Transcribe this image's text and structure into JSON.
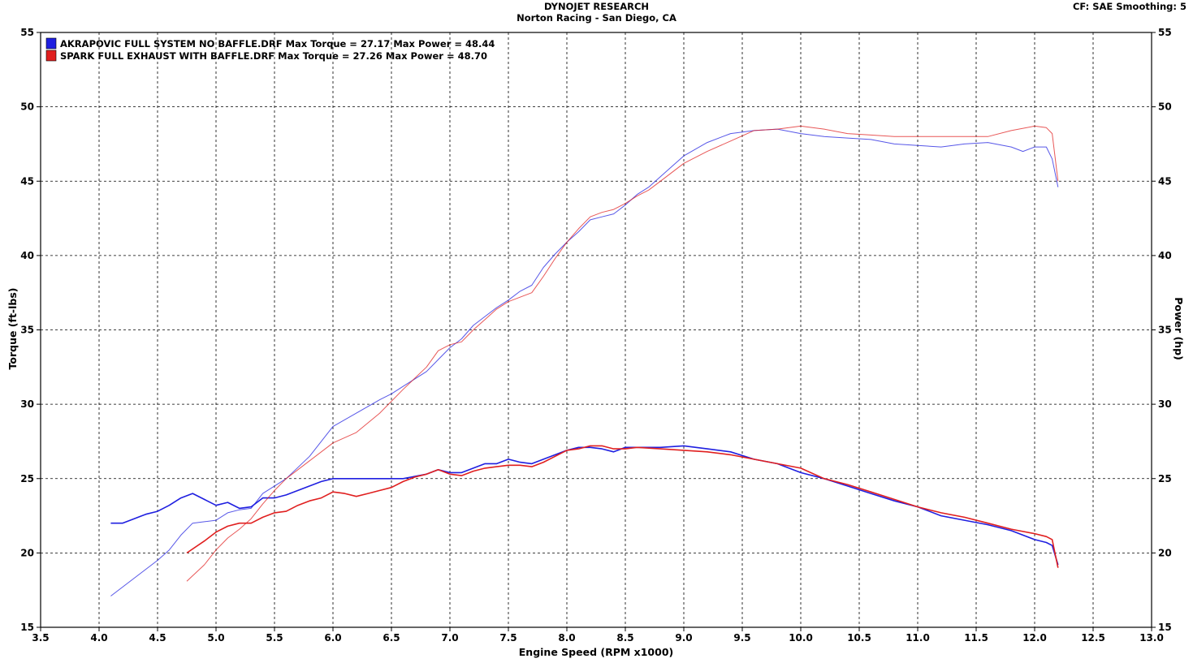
{
  "header": {
    "title": "DYNOJET RESEARCH",
    "subtitle": "Norton Racing - San Diego, CA",
    "settings": "CF: SAE  Smoothing: 5"
  },
  "chart_data": {
    "type": "line",
    "xlabel": "Engine Speed (RPM x1000)",
    "ylabel_left": "Torque (ft-lbs)",
    "ylabel_right": "Power (hp)",
    "xlim": [
      3.5,
      13.0
    ],
    "ylim": [
      15,
      55
    ],
    "x_ticks": [
      "3.5",
      "4.0",
      "4.5",
      "5.0",
      "5.5",
      "6.0",
      "6.5",
      "7.0",
      "7.5",
      "8.0",
      "8.5",
      "9.0",
      "9.5",
      "10.0",
      "10.5",
      "11.0",
      "11.5",
      "12.0",
      "12.5",
      "13.0"
    ],
    "y_ticks": [
      "15",
      "20",
      "25",
      "30",
      "35",
      "40",
      "45",
      "50",
      "55"
    ],
    "grid": true,
    "legend_position": "top-left",
    "legend": [
      {
        "label": "AKRAPOVIC FULL SYSTEM NO BAFFLE.DRF Max Torque = 27.17 Max Power = 48.44",
        "color": "#1f1fe0"
      },
      {
        "label": "SPARK FULL EXHAUST WITH BAFFLE.DRF Max Torque = 27.26 Max Power = 48.70",
        "color": "#e01f1f"
      }
    ],
    "series": [
      {
        "name": "AKRAPOVIC FULL SYSTEM NO BAFFLE.DRF",
        "measure": "Torque",
        "color": "#1f1fe0",
        "x": [
          4.1,
          4.2,
          4.3,
          4.4,
          4.5,
          4.6,
          4.7,
          4.8,
          4.9,
          5.0,
          5.1,
          5.2,
          5.3,
          5.4,
          5.5,
          5.6,
          5.7,
          5.8,
          5.9,
          6.0,
          6.2,
          6.4,
          6.6,
          6.8,
          6.9,
          7.0,
          7.1,
          7.2,
          7.3,
          7.4,
          7.5,
          7.6,
          7.7,
          7.8,
          7.9,
          8.0,
          8.1,
          8.2,
          8.3,
          8.4,
          8.5,
          8.6,
          8.8,
          9.0,
          9.2,
          9.4,
          9.6,
          9.8,
          10.0,
          10.2,
          10.4,
          10.6,
          10.8,
          11.0,
          11.2,
          11.4,
          11.6,
          11.8,
          12.0,
          12.1,
          12.15,
          12.2
        ],
        "values": [
          22.0,
          22.0,
          22.3,
          22.6,
          22.8,
          23.2,
          23.7,
          24.0,
          23.6,
          23.2,
          23.4,
          23.0,
          23.1,
          23.7,
          23.7,
          23.9,
          24.2,
          24.5,
          24.8,
          25.0,
          25.0,
          25.0,
          25.0,
          25.3,
          25.6,
          25.4,
          25.4,
          25.7,
          26.0,
          26.0,
          26.3,
          26.1,
          26.0,
          26.3,
          26.6,
          26.9,
          27.1,
          27.1,
          27.0,
          26.8,
          27.1,
          27.1,
          27.1,
          27.2,
          27.0,
          26.8,
          26.3,
          26.0,
          25.4,
          25.0,
          24.5,
          24.0,
          23.5,
          23.1,
          22.5,
          22.2,
          21.9,
          21.5,
          20.9,
          20.7,
          20.5,
          19.2
        ]
      },
      {
        "name": "SPARK FULL EXHAUST WITH BAFFLE.DRF",
        "measure": "Torque",
        "color": "#e01f1f",
        "x": [
          4.75,
          4.9,
          5.0,
          5.1,
          5.2,
          5.3,
          5.4,
          5.5,
          5.6,
          5.7,
          5.8,
          5.9,
          6.0,
          6.1,
          6.2,
          6.3,
          6.4,
          6.5,
          6.6,
          6.7,
          6.8,
          6.9,
          7.0,
          7.1,
          7.2,
          7.3,
          7.4,
          7.5,
          7.6,
          7.7,
          7.8,
          7.9,
          8.0,
          8.1,
          8.2,
          8.3,
          8.4,
          8.5,
          8.6,
          8.8,
          9.0,
          9.2,
          9.4,
          9.6,
          9.8,
          10.0,
          10.2,
          10.4,
          10.6,
          10.8,
          11.0,
          11.2,
          11.4,
          11.6,
          11.8,
          12.0,
          12.1,
          12.15,
          12.2
        ],
        "values": [
          20.0,
          20.8,
          21.4,
          21.8,
          22.0,
          22.0,
          22.4,
          22.7,
          22.8,
          23.2,
          23.5,
          23.7,
          24.1,
          24.0,
          23.8,
          24.0,
          24.2,
          24.4,
          24.8,
          25.1,
          25.3,
          25.6,
          25.3,
          25.2,
          25.5,
          25.7,
          25.8,
          25.9,
          25.9,
          25.8,
          26.1,
          26.5,
          26.9,
          27.0,
          27.2,
          27.2,
          27.0,
          27.0,
          27.1,
          27.0,
          26.9,
          26.8,
          26.6,
          26.3,
          26.0,
          25.7,
          25.0,
          24.6,
          24.1,
          23.6,
          23.1,
          22.7,
          22.4,
          22.0,
          21.6,
          21.3,
          21.1,
          20.9,
          19.0
        ]
      },
      {
        "name": "AKRAPOVIC FULL SYSTEM NO BAFFLE.DRF",
        "measure": "Power",
        "color": "#1f1fe0",
        "x": [
          4.1,
          4.3,
          4.5,
          4.6,
          4.7,
          4.8,
          4.9,
          5.0,
          5.1,
          5.2,
          5.3,
          5.4,
          5.5,
          5.6,
          5.8,
          6.0,
          6.2,
          6.4,
          6.5,
          6.6,
          6.8,
          6.9,
          7.0,
          7.1,
          7.2,
          7.3,
          7.4,
          7.5,
          7.6,
          7.7,
          7.8,
          7.9,
          8.0,
          8.1,
          8.2,
          8.3,
          8.4,
          8.5,
          8.6,
          8.7,
          8.8,
          8.9,
          9.0,
          9.2,
          9.4,
          9.6,
          9.8,
          10.0,
          10.2,
          10.4,
          10.6,
          10.8,
          11.0,
          11.2,
          11.4,
          11.6,
          11.8,
          11.9,
          12.0,
          12.1,
          12.15,
          12.2
        ],
        "values": [
          17.1,
          18.3,
          19.5,
          20.2,
          21.2,
          22.0,
          22.1,
          22.2,
          22.7,
          22.9,
          23.0,
          24.0,
          24.5,
          25.0,
          26.5,
          28.5,
          29.4,
          30.3,
          30.7,
          31.2,
          32.2,
          33.0,
          33.8,
          34.4,
          35.3,
          35.9,
          36.5,
          37.0,
          37.6,
          38.0,
          39.2,
          40.1,
          40.9,
          41.6,
          42.4,
          42.6,
          42.8,
          43.4,
          44.1,
          44.6,
          45.3,
          46.0,
          46.7,
          47.6,
          48.2,
          48.4,
          48.5,
          48.2,
          48.0,
          47.9,
          47.8,
          47.5,
          47.4,
          47.3,
          47.5,
          47.6,
          47.3,
          47.0,
          47.3,
          47.3,
          46.5,
          44.6
        ]
      },
      {
        "name": "SPARK FULL EXHAUST WITH BAFFLE.DRF",
        "measure": "Power",
        "color": "#e01f1f",
        "x": [
          4.75,
          4.9,
          5.0,
          5.1,
          5.2,
          5.3,
          5.4,
          5.5,
          5.6,
          5.8,
          6.0,
          6.2,
          6.4,
          6.6,
          6.8,
          6.9,
          7.0,
          7.1,
          7.2,
          7.3,
          7.4,
          7.5,
          7.6,
          7.7,
          7.8,
          7.9,
          8.0,
          8.1,
          8.2,
          8.3,
          8.4,
          8.5,
          8.6,
          8.7,
          8.8,
          8.9,
          9.0,
          9.2,
          9.4,
          9.6,
          9.8,
          10.0,
          10.2,
          10.4,
          10.6,
          10.8,
          11.0,
          11.2,
          11.4,
          11.6,
          11.8,
          12.0,
          12.1,
          12.15,
          12.2
        ],
        "values": [
          18.1,
          19.2,
          20.2,
          21.0,
          21.6,
          22.3,
          23.3,
          24.2,
          25.0,
          26.2,
          27.4,
          28.1,
          29.4,
          31.0,
          32.5,
          33.6,
          34.0,
          34.2,
          35.0,
          35.7,
          36.4,
          36.9,
          37.2,
          37.5,
          38.6,
          39.8,
          40.9,
          41.8,
          42.6,
          42.9,
          43.1,
          43.5,
          44.0,
          44.4,
          45.0,
          45.6,
          46.2,
          47.0,
          47.7,
          48.4,
          48.5,
          48.7,
          48.5,
          48.2,
          48.1,
          48.0,
          48.0,
          48.0,
          48.0,
          48.0,
          48.4,
          48.7,
          48.6,
          48.2,
          45.0
        ]
      }
    ]
  }
}
